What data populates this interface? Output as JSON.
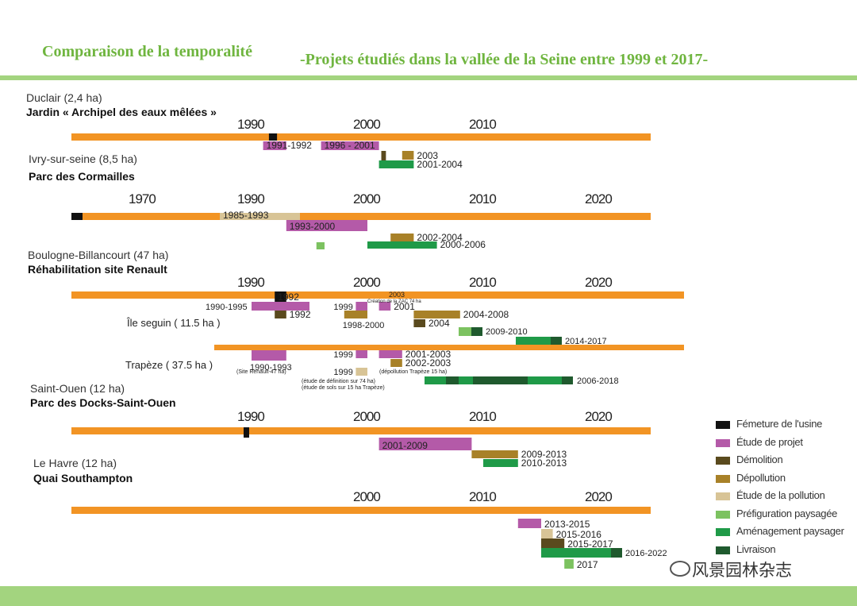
{
  "header": {
    "title_left": "Comparaison de la temporalité",
    "title_right": "-Projets étudiés dans la vallée de la Seine entre 1999 et 2017-"
  },
  "watermark": "风景园林杂志",
  "colors": {
    "timeline": "#f29424",
    "fermeture": "#111111",
    "etude_projet": "#b45aa8",
    "demolition": "#5a4a1e",
    "depollution": "#a88128",
    "etude_pollution": "#d8c496",
    "prefiguration": "#7cc260",
    "amenagement": "#1f9a48",
    "livraison": "#1f5a2e"
  },
  "legend": [
    {
      "key": "fermeture",
      "label": "Fémeture de l'usine"
    },
    {
      "key": "etude_projet",
      "label": "Étude de projet"
    },
    {
      "key": "demolition",
      "label": "Démolition"
    },
    {
      "key": "depollution",
      "label": "Dépollution"
    },
    {
      "key": "etude_pollution",
      "label": "Étude de la pollution"
    },
    {
      "key": "prefiguration",
      "label": "Préfiguration paysagée"
    },
    {
      "key": "amenagement",
      "label": "Aménagement paysager"
    },
    {
      "key": "livraison",
      "label": "Livraison"
    }
  ],
  "sites": [
    {
      "name": "Duclair (2,4 ha)",
      "project": "Jardin « Archipel des eaux mêlées »"
    },
    {
      "name": "Ivry-sur-seine (8,5 ha)",
      "project": "Parc des Cormailles"
    },
    {
      "name": "Boulogne-Billancourt (47 ha)",
      "project": "Réhabilitation site Renault"
    },
    {
      "name": "Saint-Ouen (12 ha)",
      "project": "Parc des Docks-Saint-Ouen"
    },
    {
      "name": "Le Havre (12 ha)",
      "project": "Quai Southampton"
    }
  ],
  "sub_sites": {
    "ile_seguin": "Île seguin ( 11.5 ha )",
    "trapeze": "Trapèze ( 37.5 ha )"
  },
  "chart_data": {
    "type": "gantt",
    "timelines": [
      {
        "site": "Duclair",
        "ticks": [
          "1990",
          "2000",
          "2010"
        ],
        "bars": [
          {
            "phase": "fermeture",
            "start": 1991.5,
            "end": 1992.2
          },
          {
            "phase": "etude_projet",
            "start": 1991,
            "end": 1993,
            "label": "1991-1992"
          },
          {
            "phase": "etude_projet",
            "start": 1996,
            "end": 2001,
            "label": "1996 - 2001"
          },
          {
            "phase": "demolition",
            "start": 2001.2,
            "end": 2001.6
          },
          {
            "phase": "depollution",
            "start": 2003,
            "end": 2004,
            "label": "2003"
          },
          {
            "phase": "amenagement",
            "start": 2001,
            "end": 2004,
            "label": "2001-2004"
          }
        ]
      },
      {
        "site": "Ivry-sur-seine",
        "ticks": [
          "1970",
          "1990",
          "2000",
          "2010",
          "2020"
        ],
        "bars": [
          {
            "phase": "fermeture",
            "start": 1968,
            "end": 1969
          },
          {
            "phase": "etude_pollution",
            "start": 1985,
            "end": 1993,
            "label": "1985-1993"
          },
          {
            "phase": "etude_projet",
            "start": 1993,
            "end": 2000,
            "label": "1993-2000"
          },
          {
            "phase": "depollution",
            "start": 2002,
            "end": 2004,
            "label": "2002-2004"
          },
          {
            "phase": "prefiguration",
            "start": 1995.6,
            "end": 1996.3
          },
          {
            "phase": "amenagement",
            "start": 2000,
            "end": 2006,
            "label": "2000-2006"
          }
        ]
      },
      {
        "site": "Boulogne-Billancourt",
        "ticks": [
          "1990",
          "2000",
          "2010",
          "2020"
        ],
        "bars": [
          {
            "phase": "fermeture",
            "start": 1992,
            "end": 1993,
            "label": "1992"
          },
          {
            "phase": "etude_projet",
            "start": 1990,
            "end": 1995,
            "label": "1990-1995"
          },
          {
            "phase": "etude_projet",
            "start": 1999,
            "end": 2000,
            "label": "1999"
          },
          {
            "phase": "etude_projet",
            "start": 2001,
            "end": 2002,
            "label": "2001"
          },
          {
            "phase": "demolition",
            "start": 1992,
            "end": 1993,
            "label": "1992"
          },
          {
            "phase": "depollution",
            "start": 1998,
            "end": 2000,
            "label": "1998-2000"
          },
          {
            "phase": "depollution",
            "start": 2004,
            "end": 2008,
            "label": "2004-2008"
          },
          {
            "phase": "demolition",
            "start": 2004,
            "end": 2005,
            "label": "2004"
          },
          {
            "phase": "prefiguration",
            "start": 2009,
            "end": 2010,
            "label": "2009-2010"
          },
          {
            "phase": "amenagement",
            "start": 2014,
            "end": 2017,
            "label": "2014-2017"
          },
          {
            "phase": "etude_projet",
            "start": 1990,
            "end": 1993,
            "label": "1990-1993"
          },
          {
            "phase": "etude_projet",
            "start": 1999,
            "end": 2000,
            "label": "1999"
          },
          {
            "phase": "etude_projet",
            "start": 2001,
            "end": 2003,
            "label": "2001-2003"
          },
          {
            "phase": "depollution",
            "start": 2002,
            "end": 2003,
            "label": "2002-2003"
          },
          {
            "phase": "etude_pollution",
            "start": 1999,
            "end": 2000,
            "label": "1999"
          },
          {
            "phase": "amenagement",
            "start": 2006,
            "end": 2018,
            "label": "2006-2018"
          }
        ],
        "annotations": [
          "2003",
          "Création de la ZAC 74 ha",
          "(Site Renault-47 ha)",
          "(étude de définition sur 74 ha)",
          "(étude de sols sur 15 ha Trapèze)",
          "(dépollution Trapèze 15 ha)"
        ]
      },
      {
        "site": "Saint-Ouen",
        "ticks": [
          "1990",
          "2000",
          "2010",
          "2020"
        ],
        "bars": [
          {
            "phase": "fermeture",
            "start": 1989,
            "end": 1989.5
          },
          {
            "phase": "etude_projet",
            "start": 2001,
            "end": 2009,
            "label": "2001-2009"
          },
          {
            "phase": "depollution",
            "start": 2009,
            "end": 2013,
            "label": "2009-2013"
          },
          {
            "phase": "amenagement",
            "start": 2010,
            "end": 2013,
            "label": "2010-2013"
          }
        ]
      },
      {
        "site": "Le Havre",
        "ticks": [
          "2000",
          "2010",
          "2020"
        ],
        "bars": [
          {
            "phase": "etude_projet",
            "start": 2013,
            "end": 2015,
            "label": "2013-2015"
          },
          {
            "phase": "etude_pollution",
            "start": 2015,
            "end": 2016,
            "label": "2015-2016"
          },
          {
            "phase": "demolition",
            "start": 2015,
            "end": 2017,
            "label": "2015-2017"
          },
          {
            "phase": "amenagement",
            "start": 2016,
            "end": 2022,
            "label": "2016-2022"
          },
          {
            "phase": "prefiguration",
            "start": 2017,
            "end": 2017.8,
            "label": "2017"
          }
        ]
      }
    ]
  }
}
